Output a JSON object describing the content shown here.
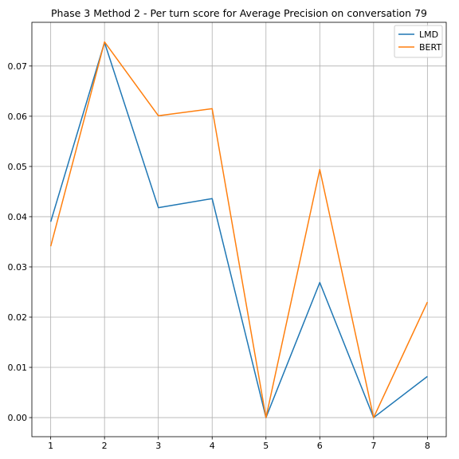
{
  "chart_data": {
    "type": "line",
    "title": "Phase 3 Method 2 - Per turn score for Average Precision on conversation 79",
    "xlabel": "",
    "ylabel": "",
    "x": [
      1,
      2,
      3,
      4,
      5,
      6,
      7,
      8
    ],
    "xticks": [
      "1",
      "2",
      "3",
      "4",
      "5",
      "6",
      "7",
      "8"
    ],
    "yticks": [
      "0.00",
      "0.01",
      "0.02",
      "0.03",
      "0.04",
      "0.05",
      "0.06",
      "0.07"
    ],
    "ytick_values": [
      0.0,
      0.01,
      0.02,
      0.03,
      0.04,
      0.05,
      0.06,
      0.07
    ],
    "xlim": [
      0.65,
      8.35
    ],
    "ylim": [
      -0.0038,
      0.0787
    ],
    "grid": true,
    "legend_position": "top-right",
    "series": [
      {
        "name": "LMD",
        "color": "#1f77b4",
        "values": [
          0.039,
          0.0747,
          0.0418,
          0.0436,
          0.0,
          0.0269,
          0.0,
          0.0082
        ]
      },
      {
        "name": "BERT",
        "color": "#ff7f0e",
        "values": [
          0.0341,
          0.0748,
          0.0601,
          0.0615,
          0.0,
          0.0494,
          0.0,
          0.023
        ]
      }
    ]
  }
}
